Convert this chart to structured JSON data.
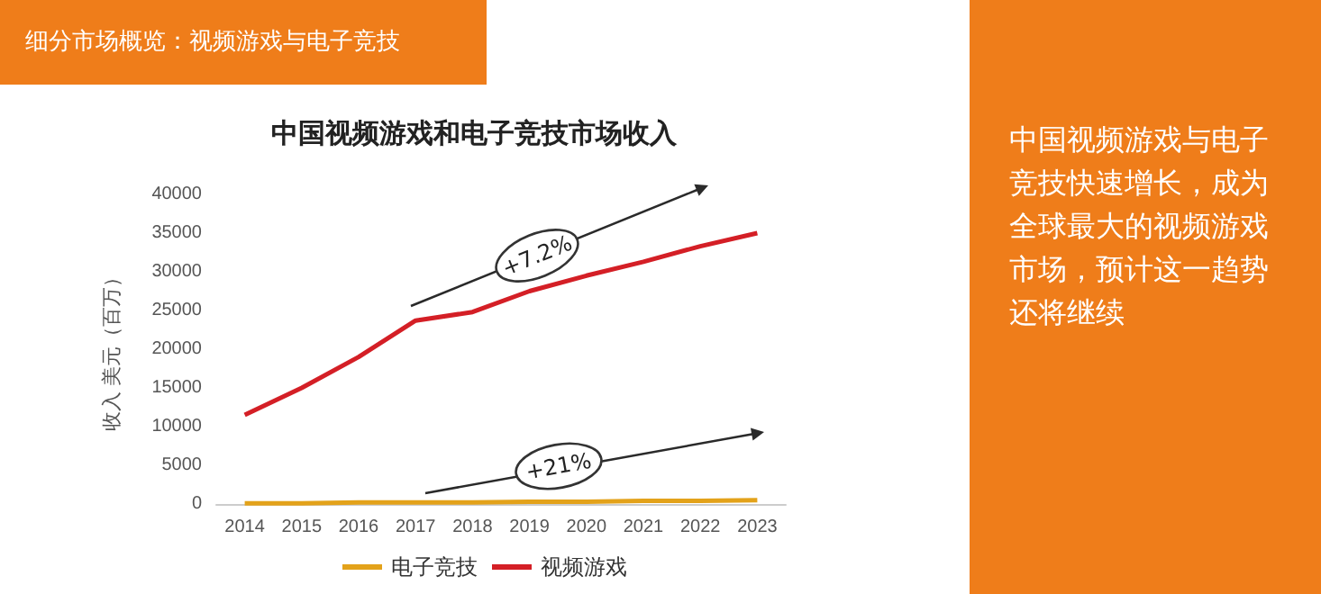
{
  "chart_data": {
    "type": "line",
    "title": "中国视频游戏和电子竞技市场收入",
    "ylabel": "收入 美元（百万）",
    "categories": [
      "2014",
      "2015",
      "2016",
      "2017",
      "2018",
      "2019",
      "2020",
      "2021",
      "2022",
      "2023"
    ],
    "series": [
      {
        "name": "电子竞技",
        "color": "#e3a21a",
        "values": [
          100,
          100,
          200,
          200,
          200,
          300,
          300,
          400,
          400,
          500
        ]
      },
      {
        "name": "视频游戏",
        "color": "#d41f26",
        "values": [
          11500,
          15000,
          19000,
          23700,
          24800,
          27500,
          29500,
          31300,
          33300,
          35000
        ]
      }
    ],
    "ylim": [
      0,
      40000
    ],
    "yticks": [
      0,
      5000,
      10000,
      15000,
      20000,
      25000,
      30000,
      35000,
      40000
    ],
    "legend": "bottom",
    "marker": "none",
    "line_style": "solid",
    "annotations": [
      "细分市场概览：视频游戏与电子竞技",
      "中国视频游戏与电子竞技快速增长，成为全球最大的视频游戏市场，预计这一趋势还将继续",
      "+7.2%",
      "+21%"
    ]
  }
}
